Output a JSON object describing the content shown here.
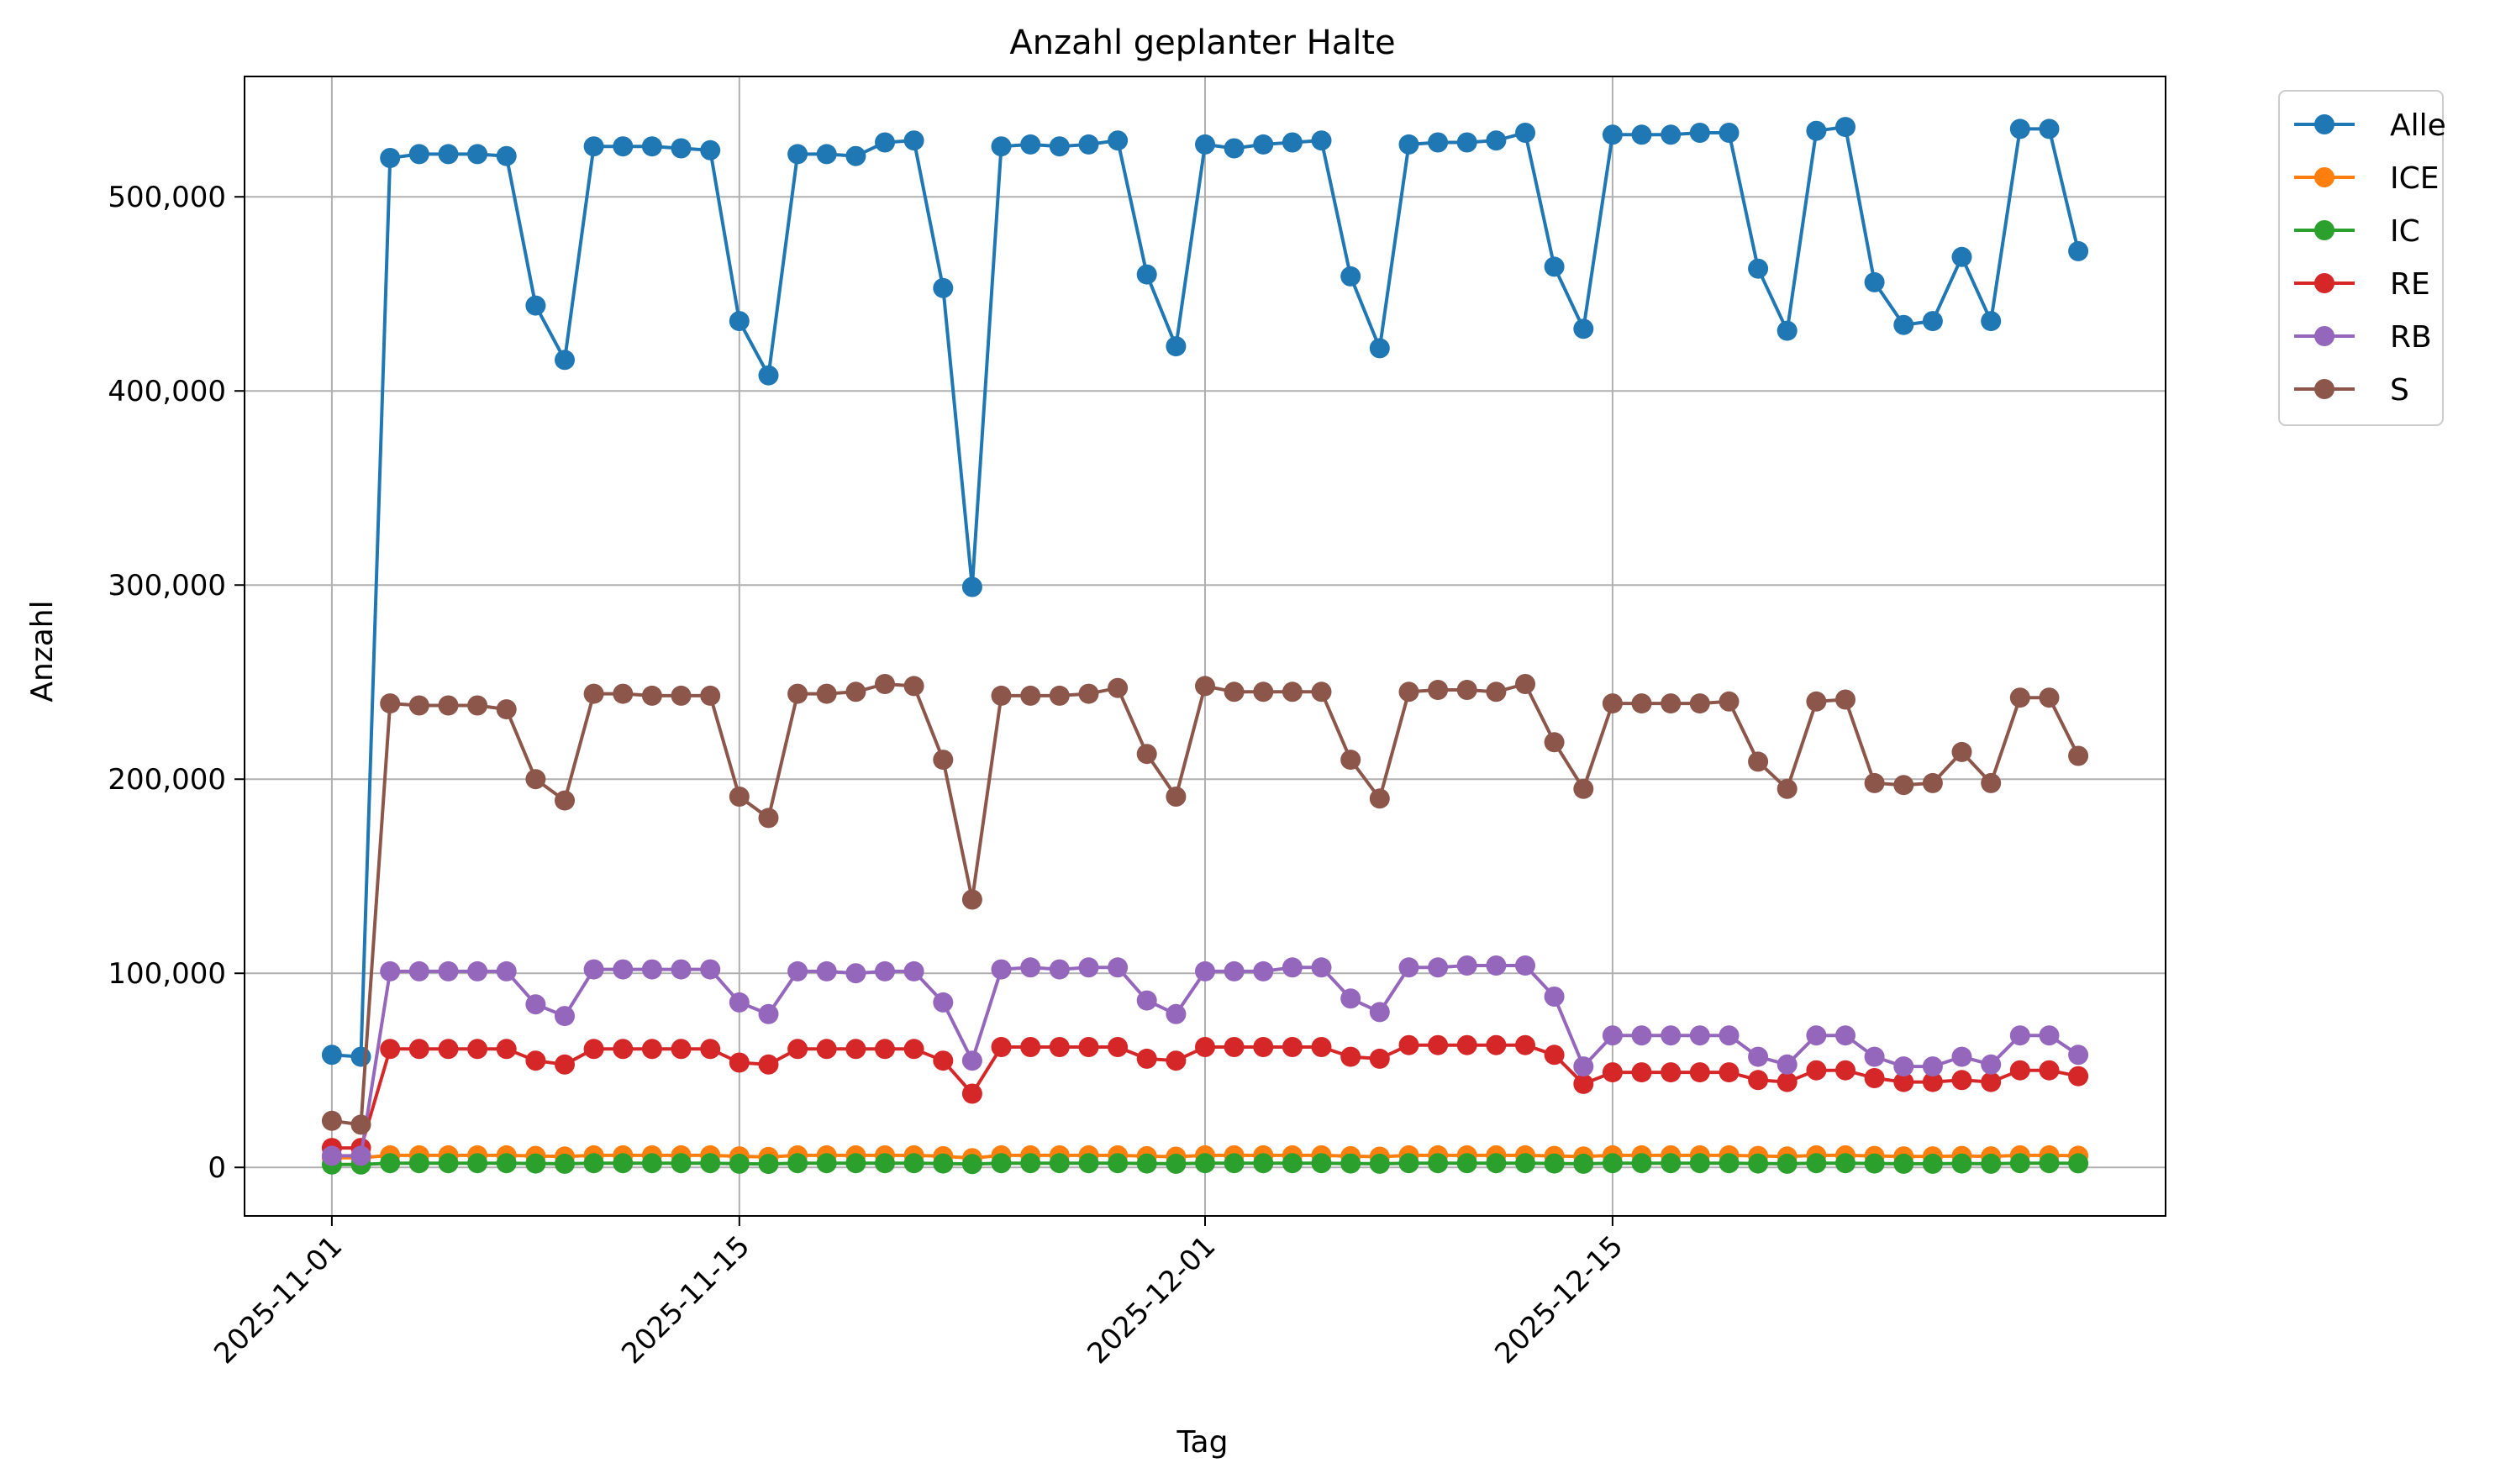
{
  "chart_data": {
    "type": "line",
    "title": "Anzahl geplanter Halte",
    "xlabel": "Tag",
    "ylabel": "Anzahl",
    "x_start": "2025-11-01",
    "num_days": 61,
    "xticks": [
      "2025-11-01",
      "2025-11-15",
      "2025-12-01",
      "2025-12-15"
    ],
    "yticks": [
      "0",
      "100,000",
      "200,000",
      "300,000",
      "400,000",
      "500,000"
    ],
    "ytick_values": [
      0,
      100000,
      200000,
      300000,
      400000,
      500000
    ],
    "ylim": [
      -25000,
      562000
    ],
    "grid": true,
    "legend_position": "outside-top-right",
    "series": [
      {
        "name": "Alle",
        "color": "#1f77b4",
        "values": [
          58000,
          57000,
          520000,
          522000,
          522000,
          522000,
          521000,
          444000,
          416000,
          526000,
          526000,
          526000,
          525000,
          524000,
          436000,
          408000,
          522000,
          522000,
          521000,
          528000,
          529000,
          453000,
          299000,
          526000,
          527000,
          526000,
          527000,
          529000,
          460000,
          423000,
          527000,
          525000,
          527000,
          528000,
          529000,
          459000,
          422000,
          527000,
          528000,
          528000,
          529000,
          533000,
          464000,
          432000,
          532000,
          532000,
          532000,
          533000,
          533000,
          463000,
          431000,
          534000,
          536000,
          456000,
          434000,
          436000,
          469000,
          436000,
          535000,
          535000,
          472000
        ]
      },
      {
        "name": "ICE",
        "color": "#ff7f0e",
        "values": [
          5000,
          5000,
          6200,
          6200,
          6200,
          6200,
          6200,
          5900,
          5600,
          6200,
          6200,
          6200,
          6200,
          6200,
          5700,
          5400,
          6200,
          6200,
          6200,
          6200,
          6200,
          5800,
          4800,
          6200,
          6200,
          6200,
          6200,
          6200,
          5800,
          5500,
          6200,
          6200,
          6200,
          6200,
          6200,
          5800,
          5500,
          6200,
          6200,
          6200,
          6200,
          6200,
          5900,
          5600,
          6200,
          6200,
          6200,
          6200,
          6200,
          5900,
          5600,
          6200,
          6200,
          5900,
          5700,
          5700,
          5900,
          5700,
          6200,
          6200,
          6000
        ]
      },
      {
        "name": "IC",
        "color": "#2ca02c",
        "values": [
          1500,
          1500,
          2200,
          2200,
          2200,
          2200,
          2200,
          2000,
          1900,
          2200,
          2200,
          2200,
          2200,
          2200,
          1900,
          1800,
          2200,
          2200,
          2200,
          2200,
          2200,
          2000,
          1700,
          2200,
          2200,
          2200,
          2200,
          2200,
          2000,
          1900,
          2200,
          2200,
          2200,
          2200,
          2200,
          2000,
          1900,
          2200,
          2200,
          2200,
          2200,
          2200,
          2000,
          1900,
          2200,
          2200,
          2200,
          2200,
          2200,
          2000,
          1900,
          2200,
          2200,
          2000,
          1900,
          1900,
          2000,
          1900,
          2200,
          2200,
          2100
        ]
      },
      {
        "name": "RE",
        "color": "#d62728",
        "values": [
          10000,
          10000,
          61000,
          61000,
          61000,
          61000,
          61000,
          55000,
          53000,
          61000,
          61000,
          61000,
          61000,
          61000,
          54000,
          53000,
          61000,
          61000,
          61000,
          61000,
          61000,
          55000,
          38000,
          62000,
          62000,
          62000,
          62000,
          62000,
          56000,
          55000,
          62000,
          62000,
          62000,
          62000,
          62000,
          57000,
          56000,
          63000,
          63000,
          63000,
          63000,
          63000,
          58000,
          43000,
          49000,
          49000,
          49000,
          49000,
          49000,
          45000,
          44000,
          50000,
          50000,
          46000,
          44000,
          44000,
          45000,
          44000,
          50000,
          50000,
          47000
        ]
      },
      {
        "name": "RB",
        "color": "#9467bd",
        "values": [
          6000,
          6000,
          101000,
          101000,
          101000,
          101000,
          101000,
          84000,
          78000,
          102000,
          102000,
          102000,
          102000,
          102000,
          85000,
          79000,
          101000,
          101000,
          100000,
          101000,
          101000,
          85000,
          55000,
          102000,
          103000,
          102000,
          103000,
          103000,
          86000,
          79000,
          101000,
          101000,
          101000,
          103000,
          103000,
          87000,
          80000,
          103000,
          103000,
          104000,
          104000,
          104000,
          88000,
          52000,
          68000,
          68000,
          68000,
          68000,
          68000,
          57000,
          53000,
          68000,
          68000,
          57000,
          52000,
          52000,
          57000,
          53000,
          68000,
          68000,
          58000
        ]
      },
      {
        "name": "S",
        "color": "#8c564b",
        "values": [
          24000,
          22000,
          239000,
          238000,
          238000,
          238000,
          236000,
          200000,
          189000,
          244000,
          244000,
          243000,
          243000,
          243000,
          191000,
          180000,
          244000,
          244000,
          245000,
          249000,
          248000,
          210000,
          138000,
          243000,
          243000,
          243000,
          244000,
          247000,
          213000,
          191000,
          248000,
          245000,
          245000,
          245000,
          245000,
          210000,
          190000,
          245000,
          246000,
          246000,
          245000,
          249000,
          219000,
          195000,
          239000,
          239000,
          239000,
          239000,
          240000,
          209000,
          195000,
          240000,
          241000,
          198000,
          197000,
          198000,
          214000,
          198000,
          242000,
          242000,
          212000
        ]
      }
    ]
  }
}
